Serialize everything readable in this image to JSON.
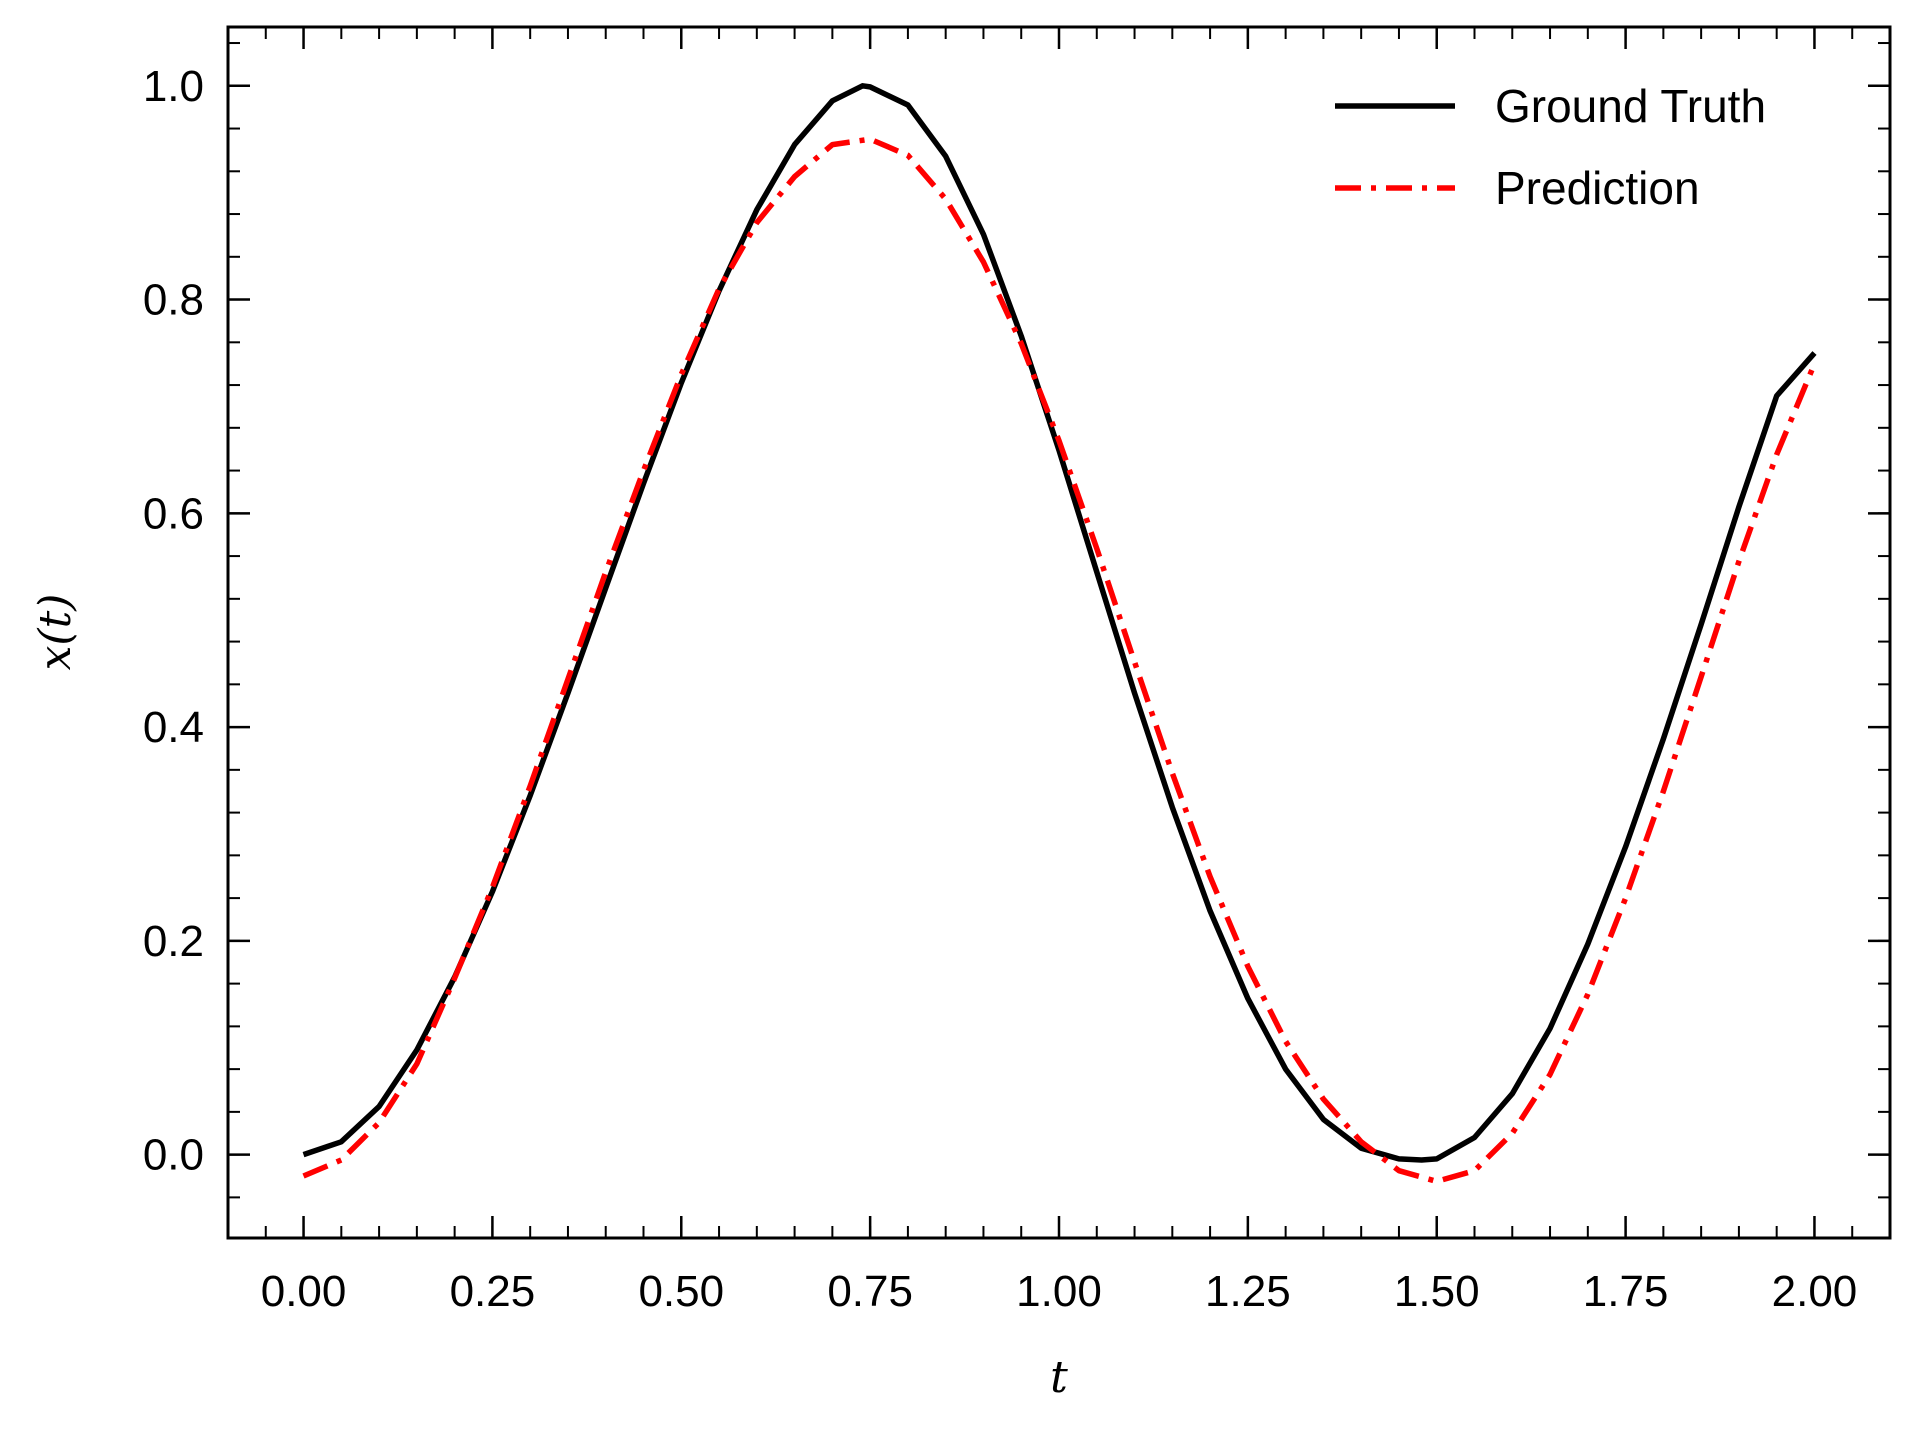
{
  "chart_data": {
    "type": "line",
    "title": "",
    "xlabel": "t",
    "ylabel": "x(t)",
    "xlim": [
      -0.1,
      2.1
    ],
    "ylim": [
      -0.078,
      1.055
    ],
    "xticks": [
      0.0,
      0.25,
      0.5,
      0.75,
      1.0,
      1.25,
      1.5,
      1.75,
      2.0
    ],
    "xtick_labels": [
      "0.00",
      "0.25",
      "0.50",
      "0.75",
      "1.00",
      "1.25",
      "1.50",
      "1.75",
      "2.00"
    ],
    "yticks": [
      0.0,
      0.2,
      0.4,
      0.6,
      0.8,
      1.0
    ],
    "ytick_labels": [
      "0.0",
      "0.2",
      "0.4",
      "0.6",
      "0.8",
      "1.0"
    ],
    "grid": false,
    "legend": "top-right",
    "series": [
      {
        "name": "Ground Truth",
        "color": "#000000",
        "style": "solid",
        "x": [
          0.0,
          0.05,
          0.1,
          0.15,
          0.2,
          0.25,
          0.3,
          0.35,
          0.4,
          0.45,
          0.5,
          0.55,
          0.6,
          0.65,
          0.7,
          0.74,
          0.75,
          0.8,
          0.85,
          0.9,
          0.95,
          1.0,
          1.05,
          1.1,
          1.15,
          1.2,
          1.25,
          1.3,
          1.35,
          1.4,
          1.45,
          1.48,
          1.5,
          1.55,
          1.6,
          1.65,
          1.7,
          1.75,
          1.8,
          1.85,
          1.9,
          1.95,
          2.0
        ],
        "y": [
          0.0,
          0.012,
          0.045,
          0.098,
          0.166,
          0.246,
          0.336,
          0.432,
          0.53,
          0.628,
          0.722,
          0.808,
          0.884,
          0.945,
          0.986,
          1.0,
          0.999,
          0.982,
          0.934,
          0.861,
          0.766,
          0.659,
          0.545,
          0.432,
          0.325,
          0.228,
          0.146,
          0.08,
          0.033,
          0.006,
          -0.004,
          -0.005,
          -0.004,
          0.016,
          0.057,
          0.118,
          0.197,
          0.288,
          0.389,
          0.496,
          0.606,
          0.71,
          0.75
        ]
      },
      {
        "name": "Prediction",
        "color": "#ff0000",
        "style": "dashdot",
        "x": [
          0.0,
          0.05,
          0.1,
          0.15,
          0.2,
          0.25,
          0.3,
          0.35,
          0.4,
          0.45,
          0.5,
          0.55,
          0.6,
          0.65,
          0.7,
          0.75,
          0.8,
          0.85,
          0.9,
          0.95,
          1.0,
          1.05,
          1.1,
          1.15,
          1.2,
          1.25,
          1.3,
          1.35,
          1.4,
          1.45,
          1.5,
          1.55,
          1.6,
          1.65,
          1.7,
          1.75,
          1.8,
          1.85,
          1.9,
          1.95,
          2.0
        ],
        "y": [
          -0.02,
          -0.005,
          0.03,
          0.085,
          0.165,
          0.25,
          0.345,
          0.445,
          0.545,
          0.64,
          0.73,
          0.81,
          0.872,
          0.915,
          0.945,
          0.95,
          0.935,
          0.894,
          0.835,
          0.759,
          0.668,
          0.567,
          0.461,
          0.357,
          0.26,
          0.176,
          0.106,
          0.052,
          0.012,
          -0.015,
          -0.025,
          -0.015,
          0.02,
          0.075,
          0.15,
          0.24,
          0.34,
          0.447,
          0.555,
          0.655,
          0.74
        ]
      }
    ]
  }
}
